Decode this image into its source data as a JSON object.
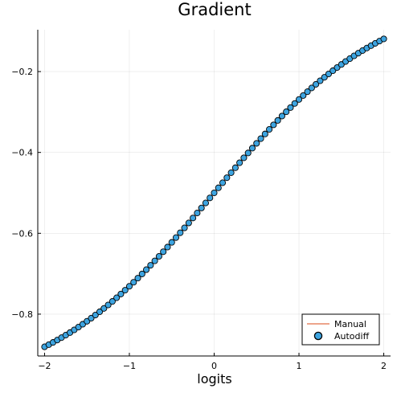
{
  "chart_data": {
    "type": "scatter",
    "title": "Gradient",
    "xlabel": "logits",
    "ylabel": "",
    "xlim": [
      -2.08,
      2.08
    ],
    "ylim": [
      -0.9035,
      -0.0965
    ],
    "x_ticks": [
      -2,
      -1,
      0,
      1,
      2
    ],
    "y_ticks": [
      -0.8,
      -0.6,
      -0.4,
      -0.2
    ],
    "x_tick_labels": [
      "−2",
      "−1",
      "0",
      "1",
      "2"
    ],
    "y_tick_labels": [
      "−0.8",
      "−0.6",
      "−0.4",
      "−0.2"
    ],
    "grid": true,
    "legend_position": "bottom-right",
    "x_range": {
      "start": -2,
      "end": 2,
      "count": 81
    },
    "series": [
      {
        "name": "Manual",
        "kind": "line",
        "color": "#e26f46",
        "formula": "sigmoid(x) - 1"
      },
      {
        "name": "Autodiff",
        "kind": "scatter",
        "color": "#3da4e0",
        "edge_color": "#000000",
        "formula": "sigmoid(x) - 1"
      }
    ]
  }
}
